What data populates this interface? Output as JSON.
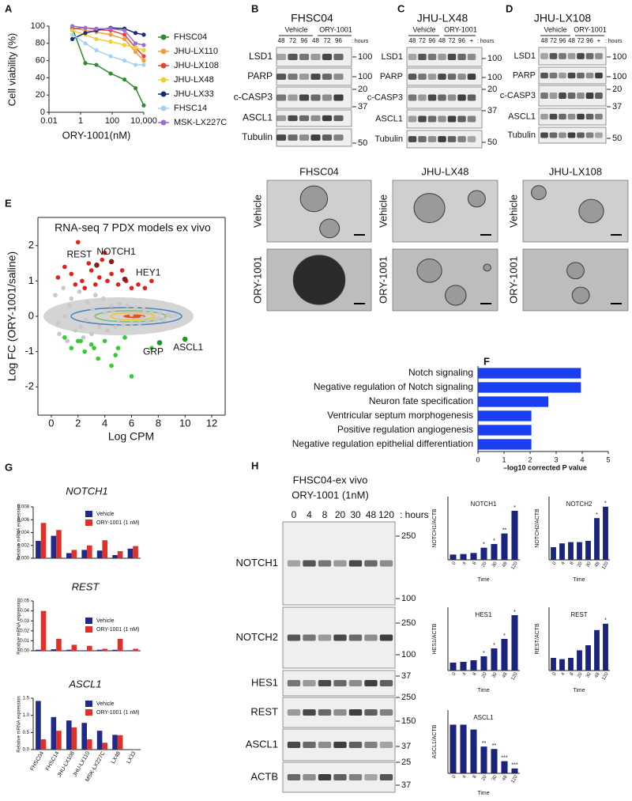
{
  "chart_data": [
    {
      "panel": "A",
      "type": "line",
      "ylabel": "Cell viability (%)",
      "xlabel": "ORY-1001(nM)",
      "xlog": true,
      "xlim": [
        0.01,
        10000
      ],
      "xticks": [
        0.01,
        1,
        100,
        {
          "value": 10000,
          "label": "10,000"
        }
      ],
      "ylim": [
        0,
        100
      ],
      "yticks": [
        0,
        20,
        40,
        60,
        80,
        100
      ],
      "legend": "right",
      "x": [
        0.3,
        2,
        10,
        80,
        600,
        3000,
        10000
      ],
      "series": [
        {
          "name": "FHSC04",
          "color": "#2e8b2e",
          "values": [
            98,
            57,
            55,
            45,
            38,
            28,
            8
          ]
        },
        {
          "name": "JHU-LX110",
          "color": "#f39c3c",
          "values": [
            98,
            95,
            93,
            90,
            85,
            70,
            60
          ]
        },
        {
          "name": "JHU-LX108",
          "color": "#e8433a",
          "values": [
            97,
            98,
            96,
            95,
            90,
            75,
            65
          ]
        },
        {
          "name": "JHU-LX48",
          "color": "#f0d030",
          "values": [
            95,
            90,
            85,
            82,
            78,
            75,
            72
          ]
        },
        {
          "name": "JHU-LX33",
          "color": "#1a2a7a",
          "values": [
            85,
            92,
            95,
            98,
            97,
            92,
            90
          ]
        },
        {
          "name": "FHSC14",
          "color": "#a8d0f0",
          "values": [
            90,
            80,
            72,
            65,
            60,
            55,
            55
          ]
        },
        {
          "name": "MSK-LX227C",
          "color": "#9b6fd6",
          "values": [
            100,
            98,
            97,
            97,
            95,
            80,
            78
          ]
        }
      ]
    },
    {
      "panel": "E",
      "type": "scatter",
      "title": "RNA-seq 7 PDX models ex vivo",
      "xlabel": "Log CPM",
      "ylabel": "Log FC (ORY-1001/saline)",
      "xlim": [
        -1,
        13
      ],
      "xticks": [
        0,
        2,
        4,
        6,
        8,
        10,
        12
      ],
      "ylim": [
        -2.8,
        2.8
      ],
      "yticks": [
        -2,
        -1,
        0,
        1,
        2
      ],
      "series": [
        {
          "color": "#c8c8c8",
          "x": [
            0.3,
            0.6,
            0.9,
            1.2,
            1.5,
            1.8,
            2.1,
            2.4,
            2.7,
            3,
            3.3,
            3.6,
            3.9,
            4.2,
            4.5,
            4.8,
            5.1,
            5.4,
            5.7,
            6,
            6.3,
            6.6,
            6.9,
            7.2,
            7.5,
            7.8,
            8.1,
            8.4,
            8.7,
            9,
            0.5,
            1.4,
            2.2,
            3.1,
            4,
            5,
            6,
            7,
            8,
            9.3,
            1,
            2.6,
            4.6,
            6.8,
            8.8
          ],
          "values": [
            0.6,
            -0.5,
            0.8,
            -0.7,
            0.5,
            -0.4,
            0.7,
            -0.6,
            0.4,
            -0.5,
            0.6,
            -0.3,
            0.5,
            -0.4,
            0.3,
            -0.3,
            0.35,
            -0.25,
            0.3,
            -0.2,
            0.25,
            -0.2,
            0.2,
            -0.15,
            0.15,
            -0.1,
            0.1,
            -0.1,
            0.05,
            0,
            -0.2,
            0.3,
            -0.3,
            0.2,
            0.1,
            -0.1,
            0.05,
            0.1,
            -0.05,
            0.02,
            0.0,
            -0.1,
            0.15,
            -0.05,
            0.02
          ]
        },
        {
          "color": "#e3201b",
          "x": [
            0.5,
            1,
            1.5,
            2,
            2.3,
            2.8,
            3,
            3.3,
            3.6,
            4,
            4.2,
            4.5,
            5,
            5.3,
            5.6,
            6,
            6.5,
            7,
            7.5,
            3.8,
            2.5,
            1.8
          ],
          "values": [
            1.1,
            1.4,
            1.2,
            2.1,
            1.0,
            1.5,
            1.3,
            0.9,
            1.1,
            1.8,
            1.0,
            1.2,
            0.9,
            1.3,
            1.0,
            0.8,
            0.9,
            0.8,
            1.0,
            1.6,
            0.8,
            0.9
          ]
        },
        {
          "color": "#33cc33",
          "x": [
            1,
            1.5,
            2,
            2.5,
            3,
            3.5,
            4,
            4.5,
            5,
            5.5,
            6,
            4.8,
            3.2,
            2.2,
            7.5
          ],
          "values": [
            -0.6,
            -0.9,
            -0.7,
            -1.0,
            -0.8,
            -1.2,
            -0.7,
            -1.4,
            -0.9,
            -0.6,
            -1.7,
            -1.1,
            -0.9,
            -0.7,
            -0.9
          ]
        }
      ],
      "annotations": [
        {
          "text": "REST",
          "x": 3.4,
          "y": 1.45,
          "color": "#8b1c1c"
        },
        {
          "text": "NOTCH1",
          "x": 4.5,
          "y": 1.55,
          "color": "#8b1c1c"
        },
        {
          "text": "HEY1",
          "x": 5.5,
          "y": 1.05,
          "color": "#8b1c1c"
        },
        {
          "text": "GRP",
          "x": 8.1,
          "y": -0.75,
          "color": "#1f9a1f"
        },
        {
          "text": "ASCL1",
          "x": 10,
          "y": -0.65,
          "color": "#1f9a1f"
        }
      ]
    },
    {
      "panel": "F",
      "type": "bar",
      "orientation": "horizontal",
      "color": "#1a3ff0",
      "categories": [
        "Notch signaling",
        "Negative regulation of Notch signaling",
        "Neuron fate specification",
        "Ventricular septum morphogenesis",
        "Positive regulation angiogenesis",
        "Negative regulation epithelial differentiation"
      ],
      "values": [
        3.95,
        3.95,
        2.7,
        2.05,
        2.05,
        2.05
      ],
      "xlabel": "–log10 corrected P value",
      "xlim": [
        0,
        5
      ],
      "xticks": [
        0,
        1,
        2,
        3,
        4,
        5
      ]
    },
    {
      "panel": "G",
      "type": "bar",
      "title": "NOTCH1",
      "ylabel": "Relative mRNA expression",
      "categories": [
        null,
        null,
        null,
        null,
        null,
        null,
        null
      ],
      "ylim": [
        0,
        0.008
      ],
      "yticks": [
        {
          "value": 0,
          "label": "0.000"
        },
        {
          "value": 0.002,
          "label": "0.002"
        },
        {
          "value": 0.004,
          "label": "0.004"
        },
        {
          "value": 0.006,
          "label": "0.006"
        },
        {
          "value": 0.008,
          "label": "0.008"
        }
      ],
      "series": [
        {
          "name": "Vehicle",
          "color": "#1f2a8a",
          "values": [
            0.0027,
            0.0035,
            0.0008,
            0.0013,
            0.0012,
            0.0005,
            0.0015
          ]
        },
        {
          "name": "ORY-1001 (1 nM)",
          "color": "#e0302a",
          "values": [
            0.0055,
            0.0044,
            0.0013,
            0.002,
            0.0028,
            0.0011,
            0.0019
          ]
        }
      ]
    },
    {
      "type": "bar",
      "title": "REST",
      "ylabel": "Relative mRNA expression",
      "categories": [
        null,
        null,
        null,
        null,
        null,
        null,
        null
      ],
      "ylim": [
        0,
        0.05
      ],
      "yticks": [
        {
          "value": 0,
          "label": "0.00"
        },
        {
          "value": 0.01,
          "label": "0.01"
        },
        {
          "value": 0.02,
          "label": "0.02"
        },
        {
          "value": 0.03,
          "label": "0.03"
        },
        {
          "value": 0.04,
          "label": "0.04"
        },
        {
          "value": 0.05,
          "label": "0.05"
        }
      ],
      "series": [
        {
          "name": "Vehicle",
          "color": "#1f2a8a",
          "values": [
            0.001,
            0.0015,
            0.001,
            0.0005,
            0.001,
            0.001,
            0.0005
          ]
        },
        {
          "name": "ORY-1001 (1 nM)",
          "color": "#e0302a",
          "values": [
            0.04,
            0.012,
            0.006,
            0.005,
            0.002,
            0.012,
            0.002
          ]
        }
      ]
    },
    {
      "type": "bar",
      "title": "ASCL1",
      "ylabel": "Relative mRNA expression",
      "categories": [
        "FHSC04",
        "FHSC14",
        "JHU-LX108",
        "JHU-LX110",
        "MSK-LX227C",
        "LX48",
        "LX33"
      ],
      "ylim": [
        0,
        1.5
      ],
      "yticks": [
        {
          "value": 0,
          "label": "0.0"
        },
        {
          "value": 0.5,
          "label": "0.5"
        },
        {
          "value": 1,
          "label": "1.0"
        },
        {
          "value": 1.5,
          "label": "1.5"
        }
      ],
      "series": [
        {
          "name": "Vehicle",
          "color": "#1f2a8a",
          "values": [
            1.42,
            0.95,
            0.85,
            0.78,
            0.55,
            0.43,
            0.01
          ]
        },
        {
          "name": "ORY-1001 (1 nM)",
          "color": "#e0302a",
          "values": [
            0.3,
            0.55,
            0.65,
            0.3,
            0.2,
            0.42,
            0.01
          ]
        }
      ]
    },
    {
      "type": "bar",
      "title": "NOTCH1",
      "ylabel": "NOTCH1/ACTB",
      "xlabel": "Time",
      "color": "#1a237e",
      "ylim": [
        0,
        12
      ],
      "categories": [
        "0",
        "4",
        "8",
        "20",
        "30",
        "48",
        "120"
      ],
      "values": [
        1,
        1.1,
        1.3,
        2.3,
        3,
        5,
        9.3
      ],
      "significance": [
        null,
        null,
        null,
        "*",
        "*",
        "**",
        "*"
      ]
    },
    {
      "type": "bar",
      "title": "NOTCH2",
      "ylabel": "NOTCH2/ACTB",
      "xlabel": "Time",
      "color": "#1a237e",
      "ylim": [
        0,
        5
      ],
      "categories": [
        "0",
        "4",
        "8",
        "20",
        "30",
        "48",
        "120"
      ],
      "values": [
        1,
        1.3,
        1.4,
        1.4,
        1.5,
        3.3,
        4.2
      ],
      "significance": [
        null,
        null,
        null,
        null,
        null,
        "*",
        "*"
      ]
    },
    {
      "type": "bar",
      "title": "HES1",
      "ylabel": "HES1/ACTB",
      "xlabel": "Time",
      "color": "#1a237e",
      "ylim": [
        0,
        8
      ],
      "categories": [
        "0",
        "4",
        "8",
        "20",
        "30",
        "48",
        "120"
      ],
      "values": [
        1,
        1.1,
        1.3,
        1.8,
        2.8,
        4,
        7
      ],
      "significance": [
        null,
        null,
        null,
        "*",
        "*",
        "*",
        "*"
      ]
    },
    {
      "type": "bar",
      "title": "REST",
      "ylabel": "REST/ACTB",
      "xlabel": "Time",
      "color": "#1a237e",
      "ylim": [
        0,
        5
      ],
      "categories": [
        "0",
        "4",
        "8",
        "20",
        "30",
        "48",
        "120"
      ],
      "values": [
        1,
        0.9,
        1,
        1.6,
        2,
        3.2,
        3.7
      ],
      "significance": [
        null,
        null,
        null,
        null,
        null,
        null,
        "*"
      ]
    },
    {
      "type": "bar",
      "title": "ASCL1",
      "ylabel": "ASCL1/ACTB",
      "xlabel": "Time",
      "color": "#1a237e",
      "ylim": [
        0,
        1.3
      ],
      "categories": [
        "0",
        "4",
        "8",
        "20",
        "30",
        "48",
        "120"
      ],
      "values": [
        1,
        1,
        0.9,
        0.55,
        0.5,
        0.25,
        0.1
      ],
      "significance": [
        null,
        null,
        null,
        "**",
        "**",
        "***",
        "***"
      ]
    }
  ],
  "blots": [
    {
      "panel": "B",
      "title": "FHSC04",
      "groups": [
        "Vehicle",
        "ORY-1001"
      ],
      "lanes": [
        "48",
        "72",
        "96",
        "48",
        "72",
        "96"
      ],
      "unit": ": hours",
      "rows": [
        "LSD1",
        "PARP",
        "c-CASP3",
        "ASCL1",
        "Tubulin"
      ],
      "markers": [
        "100",
        "100",
        "20",
        "37",
        "50"
      ]
    },
    {
      "panel": "C",
      "title": "JHU-LX48",
      "groups": [
        "Vehicle",
        "ORY-1001"
      ],
      "lanes": [
        "48",
        "72",
        "96",
        "48",
        "72",
        "96",
        "+"
      ],
      "unit": ": hours",
      "rows": [
        "LSD1",
        "PARP",
        "c-CASP3",
        "ASCL1",
        "Tubulin"
      ],
      "markers": [
        "100",
        "100",
        "20",
        "37",
        "50"
      ]
    },
    {
      "panel": "D",
      "title": "JHU-LX108",
      "groups": [
        "Vehicle",
        "ORY-1001"
      ],
      "lanes": [
        "48",
        "72",
        "96",
        "48",
        "72",
        "96",
        "+"
      ],
      "unit": ": hours",
      "rows": [
        "LSD1",
        "PARP",
        "c-CASP3",
        "ASCL1",
        "Tubulin"
      ],
      "markers": [
        "100",
        "100",
        "20",
        "37",
        "50"
      ]
    },
    {
      "panel": "H",
      "title": "FHSC04-ex vivo",
      "subtitle": "ORY-1001 (1nM)",
      "lanes": [
        "0",
        "4",
        "8",
        "20",
        "30",
        "48",
        "120"
      ],
      "unit": ": hours",
      "rows": [
        "NOTCH1",
        "NOTCH2",
        "HES1",
        "REST",
        "ASCL1",
        "ACTB"
      ],
      "markers": [
        "250",
        "100",
        "250",
        "100",
        "37",
        "250",
        "150",
        "37",
        "25",
        "37"
      ]
    }
  ],
  "micrographs": {
    "columns": [
      "FHSC04",
      "JHU-LX48",
      "JHU-LX108"
    ],
    "rows": [
      "Vehicle",
      "ORY-1001"
    ]
  }
}
